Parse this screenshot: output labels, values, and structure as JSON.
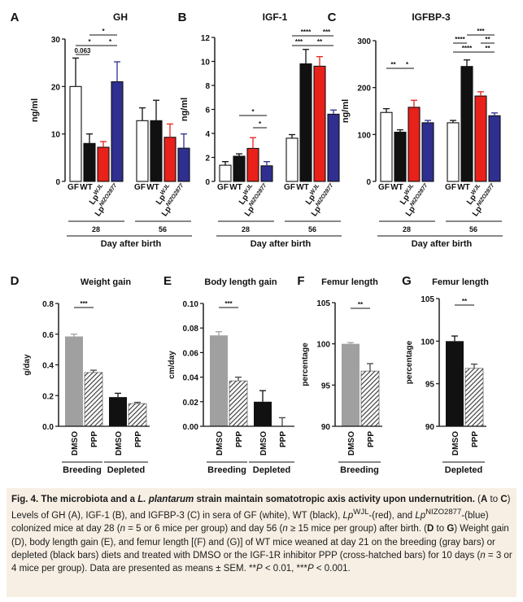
{
  "figure": {
    "colors": {
      "gf": "#ffffff",
      "wt": "#111111",
      "wjl": "#e8211b",
      "nizo": "#2e2f8f",
      "dmso_breeding": "#a0a0a0",
      "dmso_depleted": "#111111",
      "axis": "#111111"
    }
  },
  "caption": {
    "title": "Fig. 4. The microbiota and a L. plantarum strain maintain somatotropic axis activity upon undernutrition.",
    "title_part1": "Fig. 4. The microbiota and a ",
    "title_italic": "L. plantarum",
    "title_part2": " strain maintain somatotropic axis activity upon undernutrition.",
    "sentence1_a": " (",
    "sentence1_b": "A",
    "sentence1_c": " to ",
    "sentence1_d": "C",
    "sentence1_e": ") Levels of GH (A), IGF-1 (B), and IGFBP-3 (C) in sera of GF (white), WT (black), ",
    "lp": "Lp",
    "wjl_sup": "WJL",
    "sentence1_f": "-(red), and ",
    "nizo_sup": "NIZO2877",
    "sentence1_g": "-(blue) colonized mice at day 28 (",
    "n": "n",
    "sentence1_h": " = 5 or 6 mice per group) and day 56 (",
    "sentence1_i": " ≥ 15 mice per group) after birth. (",
    "sentence2_a": "D",
    "sentence2_b": " to ",
    "sentence2_c": "G",
    "sentence2_d": ") Weight gain (D), body length gain (E), and femur length [(F) and (G)] of WT mice weaned at day 21 on the breeding (gray bars) or depleted (black bars) diets and treated with DMSO or the IGF-1R inhibitor PPP (cross-hatched bars) for 10 days (",
    "sentence2_e": " = 3 or 4 mice per group). Data are presented as means ± SEM. **",
    "p": "P",
    "sentence2_f": " < 0.01, ***",
    "sentence2_g": " < 0.001."
  },
  "chart_data": [
    {
      "panel": "A",
      "type": "bar",
      "title": "GH",
      "ylabel": "ng/ml",
      "xlabel": "Day after birth",
      "ylim": [
        0,
        30
      ],
      "yticks": [
        "0",
        "10",
        "20",
        "30"
      ],
      "groups": [
        "28",
        "56"
      ],
      "categories": [
        "GF",
        "WT",
        "LpWJL",
        "LpNIZO2877"
      ],
      "series": [
        {
          "day": "28",
          "values": [
            20,
            8,
            7.2,
            21
          ],
          "errors": [
            6,
            2,
            1.2,
            4.2
          ]
        },
        {
          "day": "56",
          "values": [
            12.8,
            12.8,
            9.3,
            7
          ],
          "errors": [
            2.7,
            4.3,
            2.8,
            3
          ]
        }
      ],
      "significance": [
        "0.063",
        "*",
        "*",
        "*"
      ]
    },
    {
      "panel": "B",
      "type": "bar",
      "title": "IGF-1",
      "ylabel": "ng/ml",
      "xlabel": "Day after birth",
      "ylim": [
        0,
        12
      ],
      "yticks": [
        "0",
        "2",
        "4",
        "6",
        "8",
        "10",
        "12"
      ],
      "groups": [
        "28",
        "56"
      ],
      "categories": [
        "GF",
        "WT",
        "LpWJL",
        "LpNIZO2877"
      ],
      "series": [
        {
          "day": "28",
          "values": [
            1.35,
            2.1,
            2.75,
            1.3
          ],
          "errors": [
            0.3,
            0.2,
            0.9,
            0.35
          ]
        },
        {
          "day": "56",
          "values": [
            3.6,
            9.8,
            9.6,
            5.6
          ],
          "errors": [
            0.3,
            1.2,
            0.8,
            0.35
          ]
        }
      ],
      "significance": [
        "*",
        "*",
        "****",
        "***",
        "***",
        "**"
      ]
    },
    {
      "panel": "C",
      "type": "bar",
      "title": "IGFBP-3",
      "ylabel": "ng/ml",
      "xlabel": "Day after birth",
      "ylim": [
        0,
        300
      ],
      "yticks": [
        "0",
        "100",
        "200",
        "300"
      ],
      "groups": [
        "28",
        "56"
      ],
      "categories": [
        "GF",
        "WT",
        "LpWJL",
        "LpNIZO2877"
      ],
      "series": [
        {
          "day": "28",
          "values": [
            147,
            105,
            158,
            125
          ],
          "errors": [
            8,
            5,
            15,
            5
          ]
        },
        {
          "day": "56",
          "values": [
            125,
            245,
            182,
            140
          ],
          "errors": [
            5,
            14,
            9,
            6
          ]
        }
      ],
      "significance": [
        "**",
        "*",
        "***",
        "****",
        "**",
        "****",
        "**"
      ]
    },
    {
      "panel": "D",
      "type": "bar",
      "title": "Weight gain",
      "ylabel": "g/day",
      "ylim": [
        0,
        0.8
      ],
      "yticks": [
        "0.0",
        "0.2",
        "0.4",
        "0.6",
        "0.8"
      ],
      "categories": [
        "DMSO",
        "PPP",
        "DMSO",
        "PPP"
      ],
      "groups": [
        "Breeding",
        "Depleted"
      ],
      "values": [
        0.585,
        0.35,
        0.19,
        0.148
      ],
      "errors": [
        0.015,
        0.015,
        0.025,
        0.008
      ],
      "significance": [
        "***"
      ]
    },
    {
      "panel": "E",
      "type": "bar",
      "title": "Body length gain",
      "ylabel": "cm/day",
      "ylim": [
        0,
        0.1
      ],
      "yticks": [
        "0.00",
        "0.02",
        "0.04",
        "0.06",
        "0.08",
        "0.10"
      ],
      "categories": [
        "DMSO",
        "PPP",
        "DMSO",
        "PPP"
      ],
      "groups": [
        "Breeding",
        "Depleted"
      ],
      "values": [
        0.074,
        0.037,
        0.02,
        0.0
      ],
      "errors": [
        0.003,
        0.003,
        0.009,
        0.007
      ],
      "significance": [
        "***"
      ]
    },
    {
      "panel": "F",
      "type": "bar",
      "title": "Femur length",
      "ylabel": "percentage",
      "ylim": [
        90,
        105
      ],
      "yticks": [
        "90",
        "95",
        "100",
        "105"
      ],
      "categories": [
        "DMSO",
        "PPP"
      ],
      "groups": [
        "Breeding"
      ],
      "values": [
        100,
        96.7
      ],
      "errors": [
        0.15,
        0.9
      ],
      "significance": [
        "**"
      ]
    },
    {
      "panel": "G",
      "type": "bar",
      "title": "Femur length",
      "ylabel": "percentage",
      "ylim": [
        90,
        105
      ],
      "yticks": [
        "90",
        "95",
        "100",
        "105"
      ],
      "categories": [
        "DMSO",
        "PPP"
      ],
      "groups": [
        "Depleted"
      ],
      "values": [
        100,
        96.8
      ],
      "errors": [
        0.6,
        0.5
      ],
      "significance": [
        "**"
      ]
    }
  ]
}
